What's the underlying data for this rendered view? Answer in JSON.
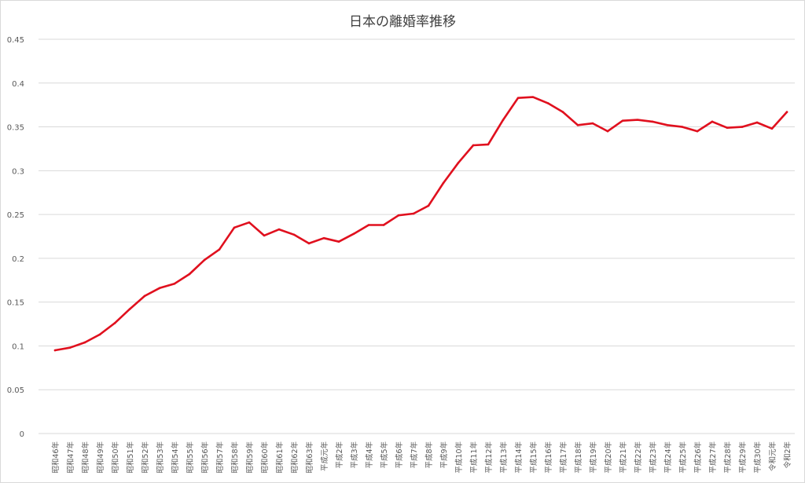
{
  "chart_data": {
    "type": "line",
    "title": "日本の離婚率推移",
    "xlabel": "",
    "ylabel": "",
    "ylim": [
      0,
      0.45
    ],
    "yticks": [
      "0",
      "0.05",
      "0.1",
      "0.15",
      "0.2",
      "0.25",
      "0.3",
      "0.35",
      "0.4",
      "0.45"
    ],
    "grid": true,
    "legend": "none",
    "line_color": "#e0101e",
    "categories": [
      "昭和46年",
      "昭和47年",
      "昭和48年",
      "昭和49年",
      "昭和50年",
      "昭和51年",
      "昭和52年",
      "昭和53年",
      "昭和54年",
      "昭和55年",
      "昭和56年",
      "昭和57年",
      "昭和58年",
      "昭和59年",
      "昭和60年",
      "昭和61年",
      "昭和62年",
      "昭和63年",
      "平成元年",
      "平成2年",
      "平成3年",
      "平成4年",
      "平成5年",
      "平成6年",
      "平成7年",
      "平成8年",
      "平成9年",
      "平成10年",
      "平成11年",
      "平成12年",
      "平成13年",
      "平成14年",
      "平成15年",
      "平成16年",
      "平成17年",
      "平成18年",
      "平成19年",
      "平成20年",
      "平成21年",
      "平成22年",
      "平成23年",
      "平成24年",
      "平成25年",
      "平成26年",
      "平成27年",
      "平成28年",
      "平成29年",
      "平成30年",
      "令和元年",
      "令和2年"
    ],
    "series": [
      {
        "values": [
          0.095,
          0.098,
          0.104,
          0.113,
          0.126,
          0.142,
          0.157,
          0.166,
          0.171,
          0.182,
          0.198,
          0.21,
          0.235,
          0.241,
          0.226,
          0.233,
          0.227,
          0.217,
          0.223,
          0.219,
          0.228,
          0.238,
          0.238,
          0.249,
          0.251,
          0.26,
          0.286,
          0.309,
          0.329,
          0.33,
          0.358,
          0.383,
          0.384,
          0.377,
          0.367,
          0.352,
          0.354,
          0.345,
          0.357,
          0.358,
          0.356,
          0.352,
          0.35,
          0.345,
          0.356,
          0.349,
          0.35,
          0.355,
          0.348,
          0.367
        ]
      }
    ]
  }
}
